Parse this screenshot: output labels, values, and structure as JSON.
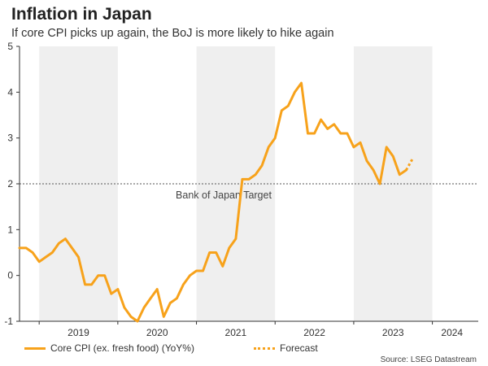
{
  "colors": {
    "accent": "#f7a21b",
    "shade": "#efefef",
    "target_line": "#555555"
  },
  "chart_data": {
    "type": "line",
    "title": "Inflation in Japan",
    "subtitle": "If core CPI picks up again, the BoJ is more likely to hike again",
    "xlabel": "",
    "ylabel": "",
    "ylim": [
      -1,
      5
    ],
    "xlim": [
      "2018-10",
      "2024-08"
    ],
    "yticks": [
      "-1",
      "0",
      "1",
      "2",
      "3",
      "4",
      "5"
    ],
    "grid": false,
    "legend_position": "bottom",
    "shaded_years": [
      "2019",
      "2021",
      "2023"
    ],
    "year_labels": [
      {
        "label": "2019",
        "date": "2019-07"
      },
      {
        "label": "2020",
        "date": "2020-07"
      },
      {
        "label": "2021",
        "date": "2021-07"
      },
      {
        "label": "2022",
        "date": "2022-07"
      },
      {
        "label": "2023",
        "date": "2023-07"
      },
      {
        "label": "2024",
        "date": "2024-04"
      }
    ],
    "reference_line": {
      "value": 2,
      "label": "Bank of Japan Target"
    },
    "series": [
      {
        "name": "Core CPI (ex. fresh food) (YoY%)",
        "style": "solid",
        "points": [
          [
            "2018-10",
            0.6
          ],
          [
            "2018-11",
            0.6
          ],
          [
            "2018-12",
            0.5
          ],
          [
            "2019-01",
            0.3
          ],
          [
            "2019-02",
            0.4
          ],
          [
            "2019-03",
            0.5
          ],
          [
            "2019-04",
            0.7
          ],
          [
            "2019-05",
            0.8
          ],
          [
            "2019-06",
            0.6
          ],
          [
            "2019-07",
            0.4
          ],
          [
            "2019-08",
            -0.2
          ],
          [
            "2019-09",
            -0.2
          ],
          [
            "2019-10",
            0.0
          ],
          [
            "2019-11",
            0.0
          ],
          [
            "2019-12",
            -0.4
          ],
          [
            "2020-01",
            -0.3
          ],
          [
            "2020-02",
            -0.7
          ],
          [
            "2020-03",
            -0.9
          ],
          [
            "2020-04",
            -1.0
          ],
          [
            "2020-05",
            -0.7
          ],
          [
            "2020-06",
            -0.5
          ],
          [
            "2020-07",
            -0.3
          ],
          [
            "2020-08",
            -0.9
          ],
          [
            "2020-09",
            -0.6
          ],
          [
            "2020-10",
            -0.5
          ],
          [
            "2020-11",
            -0.2
          ],
          [
            "2020-12",
            0.0
          ],
          [
            "2021-01",
            0.1
          ],
          [
            "2021-02",
            0.1
          ],
          [
            "2021-03",
            0.5
          ],
          [
            "2021-04",
            0.5
          ],
          [
            "2021-05",
            0.2
          ],
          [
            "2021-06",
            0.6
          ],
          [
            "2021-07",
            0.8
          ],
          [
            "2021-08",
            2.1
          ],
          [
            "2021-09",
            2.1
          ],
          [
            "2021-10",
            2.2
          ],
          [
            "2021-11",
            2.4
          ],
          [
            "2021-12",
            2.8
          ],
          [
            "2022-01",
            3.0
          ],
          [
            "2022-02",
            3.6
          ],
          [
            "2022-03",
            3.7
          ],
          [
            "2022-04",
            4.0
          ],
          [
            "2022-05",
            4.2
          ],
          [
            "2022-06",
            3.1
          ],
          [
            "2022-07",
            3.1
          ],
          [
            "2022-08",
            3.4
          ],
          [
            "2022-09",
            3.2
          ],
          [
            "2022-10",
            3.3
          ],
          [
            "2022-11",
            3.1
          ],
          [
            "2022-12",
            3.1
          ],
          [
            "2023-01",
            2.8
          ],
          [
            "2023-02",
            2.9
          ],
          [
            "2023-03",
            2.5
          ],
          [
            "2023-04",
            2.3
          ],
          [
            "2023-05",
            2.0
          ],
          [
            "2023-06",
            2.8
          ],
          [
            "2023-07",
            2.6
          ],
          [
            "2023-08",
            2.2
          ],
          [
            "2023-09",
            2.3
          ]
        ]
      },
      {
        "name": "Forecast",
        "style": "dotted",
        "points": [
          [
            "2023-09",
            2.3
          ],
          [
            "2023-10",
            2.55
          ]
        ]
      }
    ]
  },
  "legend": {
    "items": [
      "Core CPI (ex. fresh food) (YoY%)",
      "Forecast"
    ]
  },
  "source": "Source: LSEG Datastream"
}
